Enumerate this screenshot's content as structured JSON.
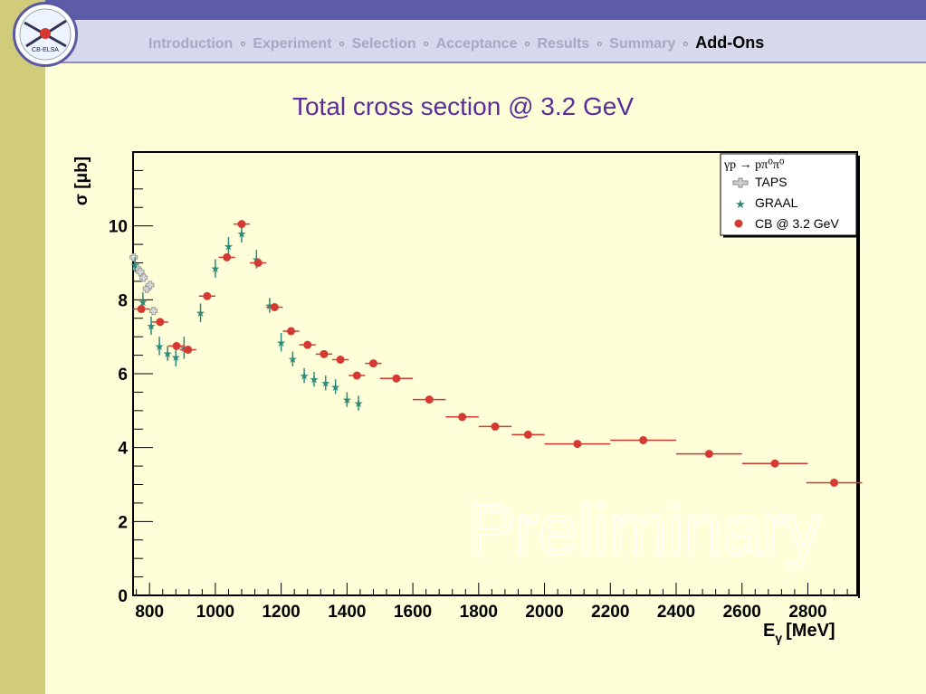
{
  "nav": {
    "items": [
      "Introduction",
      "Experiment",
      "Selection",
      "Acceptance",
      "Results",
      "Summary"
    ],
    "active": "Add-Ons",
    "separator": "∘"
  },
  "logo": {
    "text": "CB-ELSA"
  },
  "slide_title": "Total cross section @ 3.2 GeV",
  "watermark": "Preliminary",
  "colors": {
    "title": "#5a2e9a",
    "taps": "#b0b0b0",
    "graal": "#2e8a78",
    "cb": "#d43a32",
    "sidebar": "#d0cc7a",
    "background": "#fefed8"
  },
  "chart_data": {
    "type": "scatter",
    "xlabel": "E",
    "xlabel_sub": "γ",
    "xlabel_unit": "[MeV]",
    "ylabel": "σ [μb]",
    "xlim": [
      750,
      2950
    ],
    "ylim": [
      0,
      12
    ],
    "xticks": [
      800,
      1000,
      1200,
      1400,
      1600,
      1800,
      2000,
      2200,
      2400,
      2600,
      2800
    ],
    "yticks": [
      0,
      2,
      4,
      6,
      8,
      10
    ],
    "legend": {
      "header": "γp → pπ⁰π⁰",
      "placement": "top-right",
      "entries": [
        "TAPS",
        "GRAAL",
        "CB @ 3.2 GeV"
      ]
    },
    "series": [
      {
        "name": "TAPS",
        "marker": "cross",
        "x": [
          752,
          762,
          772,
          782,
          792,
          802,
          812
        ],
        "y": [
          9.15,
          8.85,
          8.75,
          8.6,
          8.3,
          8.4,
          7.7
        ]
      },
      {
        "name": "GRAAL",
        "marker": "star",
        "x": [
          756,
          780,
          805,
          830,
          855,
          880,
          905,
          955,
          1000,
          1040,
          1080,
          1125,
          1165,
          1200,
          1235,
          1270,
          1300,
          1335,
          1365,
          1400,
          1435
        ],
        "y": [
          8.95,
          7.95,
          7.3,
          6.75,
          6.55,
          6.45,
          6.7,
          7.65,
          8.85,
          9.45,
          9.8,
          9.1,
          7.85,
          6.85,
          6.4,
          5.95,
          5.85,
          5.75,
          5.65,
          5.3,
          5.2
        ],
        "err": [
          0.2,
          0.25,
          0.25,
          0.25,
          0.2,
          0.25,
          0.3,
          0.25,
          0.25,
          0.25,
          0.25,
          0.25,
          0.2,
          0.25,
          0.2,
          0.2,
          0.2,
          0.2,
          0.2,
          0.2,
          0.2
        ]
      },
      {
        "name": "CB @ 3.2 GeV",
        "marker": "circle",
        "x": [
          775,
          832,
          882,
          917,
          975,
          1035,
          1080,
          1130,
          1180,
          1230,
          1280,
          1330,
          1380,
          1430,
          1480,
          1550,
          1650,
          1750,
          1850,
          1950,
          2100,
          2300,
          2500,
          2700,
          2880
        ],
        "y": [
          7.75,
          7.4,
          6.75,
          6.65,
          8.1,
          9.15,
          10.05,
          9.0,
          7.8,
          7.15,
          6.78,
          6.53,
          6.38,
          5.95,
          6.28,
          5.87,
          5.3,
          4.83,
          4.57,
          4.35,
          4.1,
          4.2,
          3.83,
          3.57,
          3.05
        ],
        "xerr": [
          25,
          25,
          25,
          25,
          25,
          25,
          25,
          25,
          25,
          25,
          25,
          25,
          25,
          25,
          25,
          50,
          50,
          50,
          50,
          50,
          100,
          100,
          100,
          100,
          85
        ]
      }
    ]
  }
}
